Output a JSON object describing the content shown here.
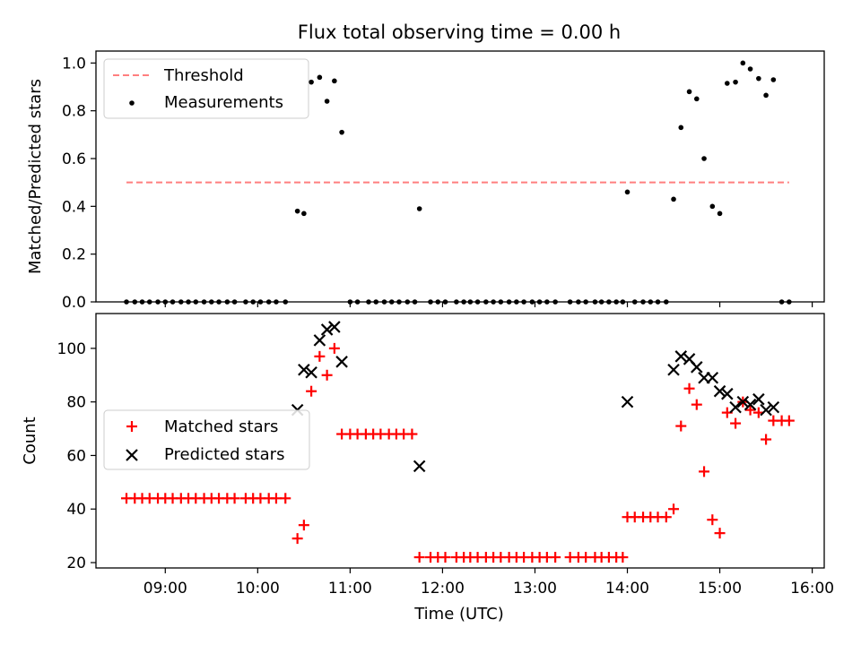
{
  "title": "Flux total observing time = 0.00 h",
  "chart_data": [
    {
      "type": "scatter",
      "panel": "top",
      "ylabel": "Matched/Predicted stars",
      "xlabel": "",
      "x_axis": "Time (UTC), decimal hours",
      "xlim": [
        8.25,
        16.13
      ],
      "ylim": [
        0,
        1.05
      ],
      "yticks": [
        "0.0",
        "0.2",
        "0.4",
        "0.6",
        "0.8",
        "1.0"
      ],
      "legend_position": "upper-left",
      "threshold": {
        "name": "Threshold",
        "value": 0.5,
        "x_range": [
          8.58,
          15.75
        ],
        "color": "#ff7f7f",
        "style": "dashed"
      },
      "series": [
        {
          "name": "Measurements",
          "color": "#000000",
          "marker": "dot",
          "points": [
            [
              8.58,
              0
            ],
            [
              8.67,
              0
            ],
            [
              8.75,
              0
            ],
            [
              8.83,
              0
            ],
            [
              8.92,
              0
            ],
            [
              9.0,
              0
            ],
            [
              9.08,
              0
            ],
            [
              9.17,
              0
            ],
            [
              9.25,
              0
            ],
            [
              9.33,
              0
            ],
            [
              9.42,
              0
            ],
            [
              9.5,
              0
            ],
            [
              9.58,
              0
            ],
            [
              9.67,
              0
            ],
            [
              9.75,
              0
            ],
            [
              9.87,
              0
            ],
            [
              9.95,
              0
            ],
            [
              10.03,
              0
            ],
            [
              10.12,
              0
            ],
            [
              10.2,
              0
            ],
            [
              10.3,
              0
            ],
            [
              10.43,
              0.38
            ],
            [
              10.5,
              0.37
            ],
            [
              10.58,
              0.92
            ],
            [
              10.67,
              0.94
            ],
            [
              10.75,
              0.84
            ],
            [
              10.83,
              0.925
            ],
            [
              10.91,
              0.71
            ],
            [
              11.0,
              0
            ],
            [
              11.08,
              0
            ],
            [
              11.2,
              0
            ],
            [
              11.28,
              0
            ],
            [
              11.37,
              0
            ],
            [
              11.45,
              0
            ],
            [
              11.53,
              0
            ],
            [
              11.62,
              0
            ],
            [
              11.7,
              0
            ],
            [
              11.75,
              0.39
            ],
            [
              11.87,
              0
            ],
            [
              11.95,
              0
            ],
            [
              12.03,
              0
            ],
            [
              12.15,
              0
            ],
            [
              12.23,
              0
            ],
            [
              12.3,
              0
            ],
            [
              12.38,
              0
            ],
            [
              12.47,
              0
            ],
            [
              12.55,
              0
            ],
            [
              12.63,
              0
            ],
            [
              12.72,
              0
            ],
            [
              12.8,
              0
            ],
            [
              12.88,
              0
            ],
            [
              12.97,
              0
            ],
            [
              13.05,
              0
            ],
            [
              13.13,
              0
            ],
            [
              13.22,
              0
            ],
            [
              13.38,
              0
            ],
            [
              13.47,
              0
            ],
            [
              13.55,
              0
            ],
            [
              13.65,
              0
            ],
            [
              13.72,
              0
            ],
            [
              13.8,
              0
            ],
            [
              13.88,
              0
            ],
            [
              13.95,
              0
            ],
            [
              14.0,
              0.46
            ],
            [
              14.08,
              0
            ],
            [
              14.17,
              0
            ],
            [
              14.25,
              0
            ],
            [
              14.33,
              0
            ],
            [
              14.42,
              0
            ],
            [
              14.5,
              0.43
            ],
            [
              14.58,
              0.73
            ],
            [
              14.67,
              0.88
            ],
            [
              14.75,
              0.85
            ],
            [
              14.83,
              0.6
            ],
            [
              14.92,
              0.4
            ],
            [
              15.0,
              0.37
            ],
            [
              15.08,
              0.915
            ],
            [
              15.17,
              0.92
            ],
            [
              15.25,
              1.0
            ],
            [
              15.33,
              0.975
            ],
            [
              15.42,
              0.935
            ],
            [
              15.5,
              0.865
            ],
            [
              15.58,
              0.93
            ],
            [
              15.67,
              0
            ],
            [
              15.75,
              0
            ]
          ]
        }
      ]
    },
    {
      "type": "scatter",
      "panel": "bottom",
      "xlabel": "Time (UTC)",
      "ylabel": "Count",
      "xlim": [
        8.25,
        16.13
      ],
      "ylim": [
        18,
        113
      ],
      "xticks": [
        {
          "value": 9,
          "label": "09:00"
        },
        {
          "value": 10,
          "label": "10:00"
        },
        {
          "value": 11,
          "label": "11:00"
        },
        {
          "value": 12,
          "label": "12:00"
        },
        {
          "value": 13,
          "label": "13:00"
        },
        {
          "value": 14,
          "label": "14:00"
        },
        {
          "value": 15,
          "label": "15:00"
        },
        {
          "value": 16,
          "label": "16:00"
        }
      ],
      "yticks": [
        "20",
        "40",
        "60",
        "80",
        "100"
      ],
      "legend_position": "center-left",
      "series": [
        {
          "name": "Matched stars",
          "color": "#ff0000",
          "marker": "plus",
          "points": [
            [
              8.58,
              44
            ],
            [
              8.67,
              44
            ],
            [
              8.75,
              44
            ],
            [
              8.83,
              44
            ],
            [
              8.92,
              44
            ],
            [
              9.0,
              44
            ],
            [
              9.08,
              44
            ],
            [
              9.17,
              44
            ],
            [
              9.25,
              44
            ],
            [
              9.33,
              44
            ],
            [
              9.42,
              44
            ],
            [
              9.5,
              44
            ],
            [
              9.58,
              44
            ],
            [
              9.67,
              44
            ],
            [
              9.75,
              44
            ],
            [
              9.87,
              44
            ],
            [
              9.95,
              44
            ],
            [
              10.03,
              44
            ],
            [
              10.12,
              44
            ],
            [
              10.2,
              44
            ],
            [
              10.3,
              44
            ],
            [
              10.43,
              29
            ],
            [
              10.5,
              34
            ],
            [
              10.58,
              84
            ],
            [
              10.67,
              97
            ],
            [
              10.75,
              90
            ],
            [
              10.83,
              100
            ],
            [
              10.91,
              68
            ],
            [
              11.0,
              68
            ],
            [
              11.08,
              68
            ],
            [
              11.17,
              68
            ],
            [
              11.25,
              68
            ],
            [
              11.33,
              68
            ],
            [
              11.42,
              68
            ],
            [
              11.5,
              68
            ],
            [
              11.58,
              68
            ],
            [
              11.67,
              68
            ],
            [
              11.75,
              22
            ],
            [
              11.87,
              22
            ],
            [
              11.95,
              22
            ],
            [
              12.03,
              22
            ],
            [
              12.15,
              22
            ],
            [
              12.23,
              22
            ],
            [
              12.3,
              22
            ],
            [
              12.38,
              22
            ],
            [
              12.47,
              22
            ],
            [
              12.55,
              22
            ],
            [
              12.63,
              22
            ],
            [
              12.72,
              22
            ],
            [
              12.8,
              22
            ],
            [
              12.88,
              22
            ],
            [
              12.97,
              22
            ],
            [
              13.05,
              22
            ],
            [
              13.13,
              22
            ],
            [
              13.22,
              22
            ],
            [
              13.38,
              22
            ],
            [
              13.47,
              22
            ],
            [
              13.55,
              22
            ],
            [
              13.65,
              22
            ],
            [
              13.72,
              22
            ],
            [
              13.8,
              22
            ],
            [
              13.88,
              22
            ],
            [
              13.95,
              22
            ],
            [
              14.0,
              37
            ],
            [
              14.08,
              37
            ],
            [
              14.17,
              37
            ],
            [
              14.25,
              37
            ],
            [
              14.33,
              37
            ],
            [
              14.42,
              37
            ],
            [
              14.5,
              40
            ],
            [
              14.58,
              71
            ],
            [
              14.67,
              85
            ],
            [
              14.75,
              79
            ],
            [
              14.83,
              54
            ],
            [
              14.92,
              36
            ],
            [
              15.0,
              31
            ],
            [
              15.08,
              76
            ],
            [
              15.17,
              72
            ],
            [
              15.25,
              80
            ],
            [
              15.33,
              77
            ],
            [
              15.42,
              76
            ],
            [
              15.5,
              66
            ],
            [
              15.58,
              73
            ],
            [
              15.67,
              73
            ],
            [
              15.75,
              73
            ]
          ]
        },
        {
          "name": "Predicted stars",
          "color": "#000000",
          "marker": "x",
          "points": [
            [
              10.43,
              77
            ],
            [
              10.5,
              92
            ],
            [
              10.58,
              91
            ],
            [
              10.67,
              103
            ],
            [
              10.75,
              107
            ],
            [
              10.83,
              108
            ],
            [
              10.91,
              95
            ],
            [
              11.75,
              56
            ],
            [
              14.0,
              80
            ],
            [
              14.5,
              92
            ],
            [
              14.58,
              97
            ],
            [
              14.67,
              96
            ],
            [
              14.75,
              93
            ],
            [
              14.83,
              89
            ],
            [
              14.92,
              89
            ],
            [
              15.0,
              84
            ],
            [
              15.08,
              83
            ],
            [
              15.17,
              78
            ],
            [
              15.25,
              80
            ],
            [
              15.33,
              79
            ],
            [
              15.42,
              81
            ],
            [
              15.5,
              77
            ],
            [
              15.58,
              78
            ]
          ]
        }
      ]
    }
  ]
}
